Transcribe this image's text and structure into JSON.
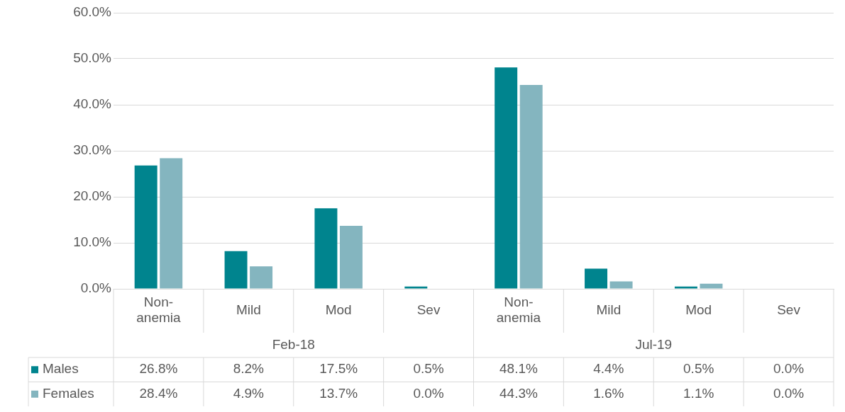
{
  "chart_data": {
    "type": "bar",
    "categories": [
      "Non-anemia",
      "Mild",
      "Mod",
      "Sev",
      "Non-anemia",
      "Mild",
      "Mod",
      "Sev"
    ],
    "annotations": [
      "Feb-18",
      "Jul-19"
    ],
    "series": [
      {
        "name": "Males",
        "color": "#00848e",
        "values": [
          26.8,
          8.2,
          17.5,
          0.5,
          48.1,
          4.4,
          0.5,
          0.0
        ],
        "value_labels": [
          "26.8%",
          "8.2%",
          "17.5%",
          "0.5%",
          "48.1%",
          "4.4%",
          "0.5%",
          "0.0%"
        ]
      },
      {
        "name": "Females",
        "color": "#84b5bf",
        "values": [
          28.4,
          4.9,
          13.7,
          0.0,
          44.3,
          1.6,
          1.1,
          0.0
        ],
        "value_labels": [
          "28.4%",
          "4.9%",
          "13.7%",
          "0.0%",
          "44.3%",
          "1.6%",
          "1.1%",
          "0.0%"
        ]
      }
    ],
    "ylim": [
      0,
      60
    ],
    "yticks": [
      {
        "value": 0,
        "label": "0.0%"
      },
      {
        "value": 10,
        "label": "10.0%"
      },
      {
        "value": 20,
        "label": "20.0%"
      },
      {
        "value": 30,
        "label": "30.0%"
      },
      {
        "value": 40,
        "label": "40.0%"
      },
      {
        "value": 50,
        "label": "50.0%"
      },
      {
        "value": 60,
        "label": "60.0%"
      }
    ],
    "grid": "y",
    "legend": "bottom left"
  }
}
